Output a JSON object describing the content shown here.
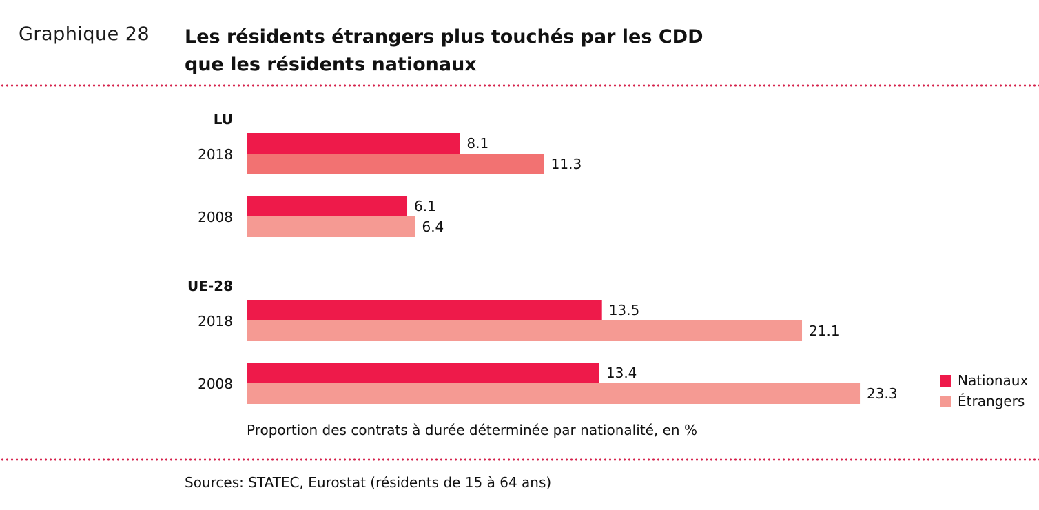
{
  "header": {
    "graph_label": "Graphique 28",
    "title_line1": "Les résidents étrangers plus touchés par les CDD",
    "title_line2": "que les résidents nationaux"
  },
  "chart_data": {
    "type": "bar",
    "orientation": "horizontal",
    "groups": [
      {
        "name": "LU",
        "rows": [
          {
            "year": "2018",
            "values": [
              8.1,
              11.3
            ],
            "labels": [
              "8.1",
              "11.3"
            ]
          },
          {
            "year": "2008",
            "values": [
              6.1,
              6.4
            ],
            "labels": [
              "6.1",
              "6.4"
            ]
          }
        ]
      },
      {
        "name": "UE-28",
        "rows": [
          {
            "year": "2018",
            "values": [
              13.5,
              21.1
            ],
            "labels": [
              "13.5",
              "21.1"
            ]
          },
          {
            "year": "2008",
            "values": [
              13.4,
              23.3
            ],
            "labels": [
              "13.4",
              "23.3"
            ]
          }
        ]
      }
    ],
    "series": [
      {
        "name": "Nationaux",
        "color": "#ee1a4a"
      },
      {
        "name": "Étrangers",
        "color": "#f59a93"
      }
    ],
    "lu_2018_etrangers_color": "#f27272",
    "xlabel": "Proportion des contrats à durée déterminée par nationalité, en %",
    "xlim": [
      0,
      26
    ],
    "legend_position": "right",
    "grid": false
  },
  "footer": {
    "source": "Sources: STATEC, Eurostat (résidents de 15 à 64 ans)"
  }
}
